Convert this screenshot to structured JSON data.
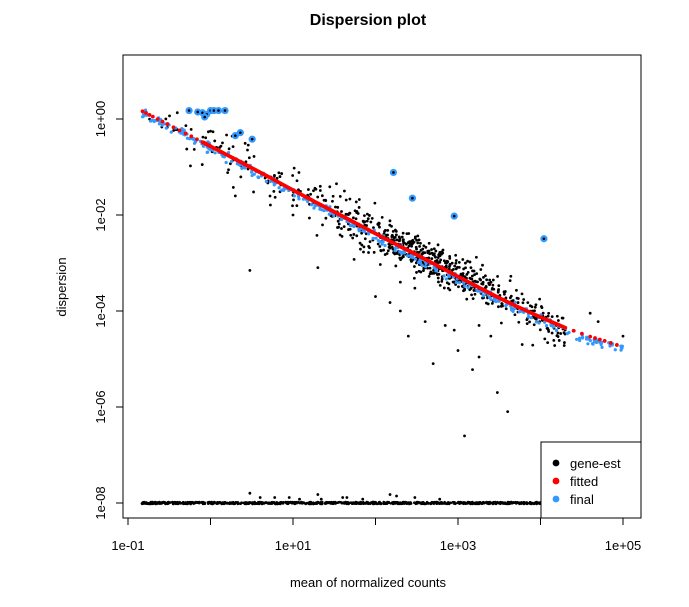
{
  "chart_data": {
    "type": "scatter",
    "title": "Dispersion plot",
    "xlabel": "mean of normalized counts",
    "ylabel": "dispersion",
    "x_scale": "log10",
    "y_scale": "log10",
    "xlim": [
      0.1,
      150000
    ],
    "ylim": [
      5e-09,
      2.0
    ],
    "x_ticks": [
      {
        "value": 0.1,
        "label": "1e-01"
      },
      {
        "value": 10,
        "label": "1e+01"
      },
      {
        "value": 1000,
        "label": "1e+03"
      },
      {
        "value": 100000,
        "label": "1e+05"
      }
    ],
    "y_ticks": [
      {
        "value": 1e-08,
        "label": "1e-08"
      },
      {
        "value": 1e-06,
        "label": "1e-06"
      },
      {
        "value": 0.0001,
        "label": "1e-04"
      },
      {
        "value": 0.01,
        "label": "1e-02"
      },
      {
        "value": 1,
        "label": "1e+00"
      }
    ],
    "grid": false,
    "legend_position": "bottom-right",
    "legend": [
      {
        "label": "gene-est",
        "color": "#000000"
      },
      {
        "label": "fitted",
        "color": "#ff0000"
      },
      {
        "label": "final",
        "color": "#3399ff"
      }
    ],
    "series": [
      {
        "name": "fitted",
        "color": "#ff0000",
        "points": [
          [
            0.15,
            1.45
          ],
          [
            0.2,
            1.12
          ],
          [
            0.3,
            0.78
          ],
          [
            0.5,
            0.5
          ],
          [
            0.8,
            0.33
          ],
          [
            1,
            0.27
          ],
          [
            2,
            0.145
          ],
          [
            3,
            0.1
          ],
          [
            5,
            0.063
          ],
          [
            10,
            0.033
          ],
          [
            20,
            0.0175
          ],
          [
            30,
            0.0122
          ],
          [
            50,
            0.0077
          ],
          [
            100,
            0.0041
          ],
          [
            200,
            0.0022
          ],
          [
            300,
            0.00155
          ],
          [
            500,
            0.00098
          ],
          [
            1000,
            0.00052
          ],
          [
            2000,
            0.00028
          ],
          [
            3000,
            0.000195
          ],
          [
            5000,
            0.000128
          ],
          [
            10000,
            7.45e-05
          ],
          [
            20000,
            4.48e-05
          ],
          [
            40000,
            2.92e-05
          ],
          [
            60000,
            2.38e-05
          ],
          [
            100000,
            1.78e-05
          ]
        ]
      },
      {
        "name": "final",
        "color": "#3399ff",
        "points": [
          [
            0.15,
            1.5
          ],
          [
            0.2,
            1.05
          ],
          [
            0.3,
            0.74
          ],
          [
            0.5,
            0.46
          ],
          [
            0.8,
            0.3
          ],
          [
            1,
            0.245
          ],
          [
            2,
            0.13
          ],
          [
            3,
            0.088
          ],
          [
            5,
            0.055
          ],
          [
            10,
            0.029
          ],
          [
            20,
            0.0153
          ],
          [
            30,
            0.0106
          ],
          [
            50,
            0.0066
          ],
          [
            100,
            0.0035
          ],
          [
            200,
            0.0019
          ],
          [
            300,
            0.00133
          ],
          [
            500,
            0.00085
          ],
          [
            1000,
            0.00045
          ],
          [
            2000,
            0.00024
          ],
          [
            3000,
            0.000168
          ],
          [
            5000,
            0.00011
          ],
          [
            10000,
            6.4e-05
          ],
          [
            20000,
            3.8e-05
          ],
          [
            40000,
            2.4e-05
          ],
          [
            60000,
            2.1e-05
          ],
          [
            100000,
            1.7e-05
          ]
        ]
      },
      {
        "name": "final-outliers",
        "color": "#3399ff",
        "points": [
          [
            0.55,
            1.5
          ],
          [
            0.7,
            1.4
          ],
          [
            0.8,
            1.35
          ],
          [
            0.9,
            1.25
          ],
          [
            1.0,
            1.5
          ],
          [
            1.1,
            1.5
          ],
          [
            1.25,
            1.5
          ],
          [
            1.5,
            1.5
          ],
          [
            0.85,
            1.1
          ],
          [
            2.0,
            0.45
          ],
          [
            2.3,
            0.52
          ],
          [
            3.2,
            0.38
          ],
          [
            165,
            0.077
          ],
          [
            280,
            0.0224
          ],
          [
            900,
            0.0095
          ],
          [
            11000,
            0.0032
          ]
        ]
      }
    ]
  }
}
